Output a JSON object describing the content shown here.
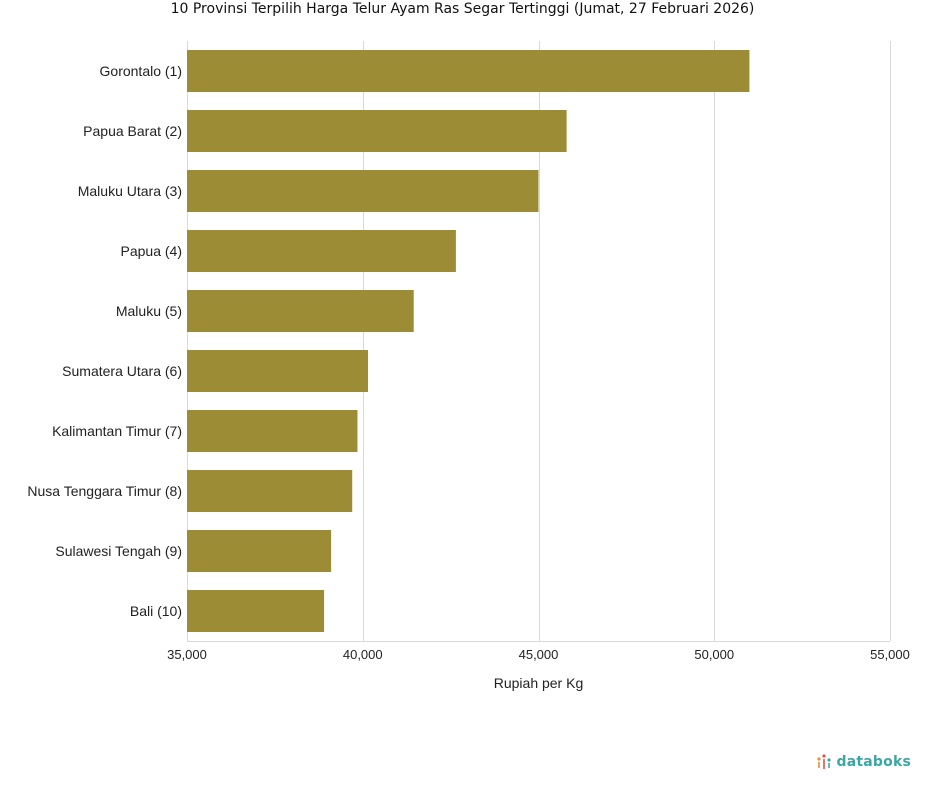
{
  "chart_data": {
    "type": "bar",
    "orientation": "horizontal",
    "title": "10 Provinsi Terpilih Harga Telur Ayam Ras Segar Tertinggi (Jumat, 27 Februari 2026)",
    "xlabel": "Rupiah per Kg",
    "ylabel": "",
    "categories": [
      "Gorontalo (1)",
      "Papua Barat (2)",
      "Maluku Utara (3)",
      "Papua (4)",
      "Maluku (5)",
      "Sumatera Utara (6)",
      "Kalimantan Timur (7)",
      "Nusa Tenggara Timur (8)",
      "Sulawesi Tengah (9)",
      "Bali (10)"
    ],
    "values": [
      51000,
      45800,
      45000,
      42650,
      41450,
      40150,
      39850,
      39700,
      39100,
      38900
    ],
    "xlim": [
      35000,
      55000
    ],
    "xticks": [
      35000,
      40000,
      45000,
      50000,
      55000
    ],
    "xtick_labels": [
      "35,000",
      "40,000",
      "45,000",
      "50,000",
      "55,000"
    ],
    "grid": true,
    "bar_color": "#9c8c35",
    "grid_color": "#d9d9d9"
  },
  "brand": {
    "text": "databoks",
    "color": "#3aa7a6",
    "icon": "databoks-logo-icon"
  }
}
